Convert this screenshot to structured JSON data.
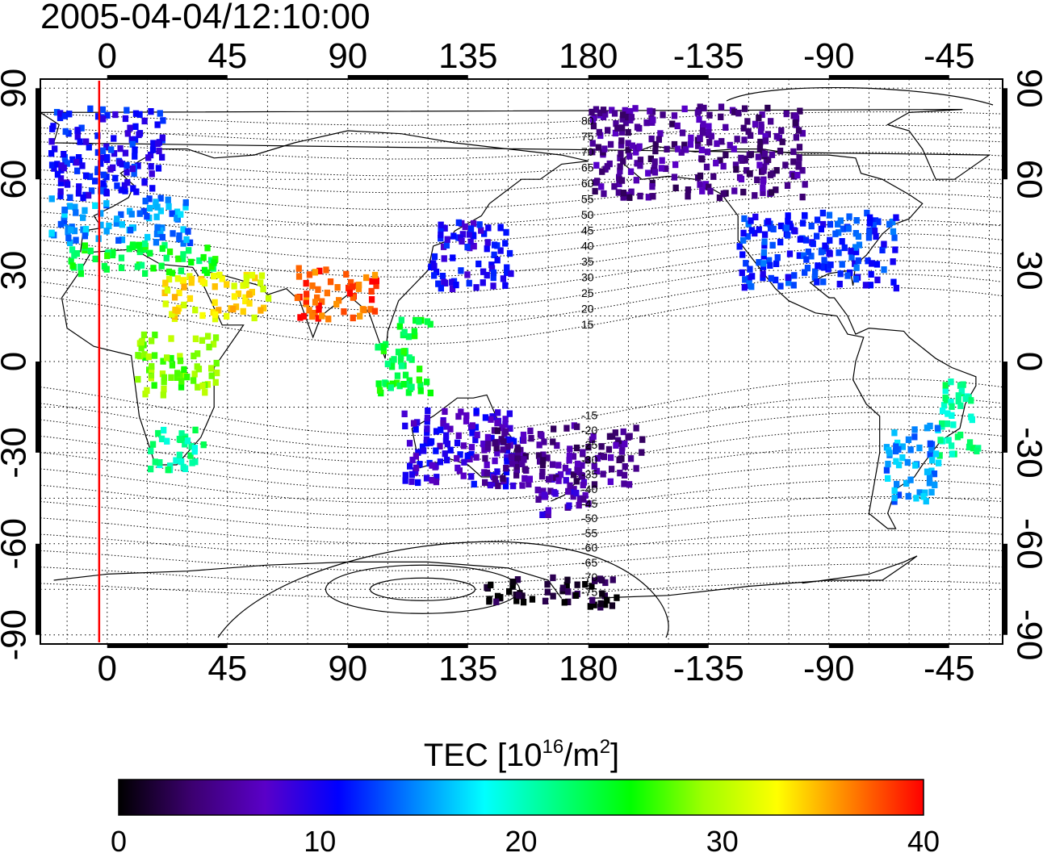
{
  "title": "2005-04-04/12:10:00",
  "axes": {
    "top_x_ticks": [
      "0",
      "45",
      "90",
      "135",
      "180",
      "-135",
      "-90",
      "-45"
    ],
    "bottom_x_ticks": [
      "0",
      "45",
      "90",
      "135",
      "180",
      "-135",
      "-90",
      "-45"
    ],
    "left_y_ticks": [
      "90",
      "60",
      "30",
      "0",
      "-30",
      "-60",
      "-90"
    ],
    "right_y_ticks": [
      "90",
      "60",
      "30",
      "0",
      "-30",
      "-60",
      "-90"
    ],
    "x_range_deg": [
      -25,
      335
    ],
    "y_range_deg": [
      -93,
      93
    ],
    "grid": "dotted, every 15 degrees"
  },
  "marker_line": {
    "longitude": -3,
    "color": "#ff0000"
  },
  "contour_labels": [
    "80",
    "75",
    "70",
    "65",
    "60",
    "55",
    "50",
    "45",
    "40",
    "35",
    "30",
    "25",
    "20",
    "15",
    "-15",
    "-20",
    "-25",
    "-30",
    "-35",
    "-40",
    "-45",
    "-50",
    "-55",
    "-60",
    "-65",
    "-70",
    "-75"
  ],
  "colorbar": {
    "label": "TEC  [10",
    "label_exp": "16",
    "label_unit": "/m",
    "label_unit_exp": "2",
    "label_end": "]",
    "ticks": [
      "0",
      "10",
      "20",
      "30",
      "40"
    ],
    "min": 0,
    "max": 40,
    "colors": [
      "#000000",
      "#3c0070",
      "#5a00c8",
      "#0000ff",
      "#0080ff",
      "#00ffff",
      "#00ff80",
      "#00ff00",
      "#a0ff00",
      "#ffff00",
      "#ff8000",
      "#ff0000"
    ]
  },
  "chart_data": {
    "type": "heatmap",
    "title": "2005-04-04/12:10:00",
    "value_label": "TEC [10^16/m^2]",
    "value_range": [
      0,
      40
    ],
    "regions": [
      {
        "lon": [
          -22,
          20
        ],
        "lat": [
          55,
          85
        ],
        "tec": 11
      },
      {
        "lon": [
          -22,
          30
        ],
        "lat": [
          40,
          55
        ],
        "tec": 15
      },
      {
        "lon": [
          -15,
          40
        ],
        "lat": [
          30,
          40
        ],
        "tec": 24
      },
      {
        "lon": [
          20,
          60
        ],
        "lat": [
          15,
          30
        ],
        "tec": 33
      },
      {
        "lon": [
          70,
          100
        ],
        "lat": [
          15,
          32
        ],
        "tec": 38
      },
      {
        "lon": [
          100,
          120
        ],
        "lat": [
          -10,
          15
        ],
        "tec": 24
      },
      {
        "lon": [
          120,
          150
        ],
        "lat": [
          25,
          48
        ],
        "tec": 10
      },
      {
        "lon": [
          -180,
          -100
        ],
        "lat": [
          55,
          85
        ],
        "tec": 5
      },
      {
        "lon": [
          -125,
          -65
        ],
        "lat": [
          25,
          50
        ],
        "tec": 12
      },
      {
        "lon": [
          -50,
          -35
        ],
        "lat": [
          -30,
          -5
        ],
        "tec": 21
      },
      {
        "lon": [
          -70,
          -50
        ],
        "lat": [
          -45,
          -20
        ],
        "tec": 15
      },
      {
        "lon": [
          15,
          35
        ],
        "lat": [
          -35,
          -20
        ],
        "tec": 21
      },
      {
        "lon": [
          10,
          40
        ],
        "lat": [
          -10,
          10
        ],
        "tec": 28
      },
      {
        "lon": [
          110,
          155
        ],
        "lat": [
          -40,
          -15
        ],
        "tec": 9
      },
      {
        "lon": [
          160,
          180
        ],
        "lat": [
          -50,
          -35
        ],
        "tec": 7
      },
      {
        "lon": [
          140,
          200
        ],
        "lat": [
          -40,
          -20
        ],
        "tec": 5
      },
      {
        "lon": [
          140,
          190
        ],
        "lat": [
          -80,
          -70
        ],
        "tec": 1
      }
    ]
  }
}
